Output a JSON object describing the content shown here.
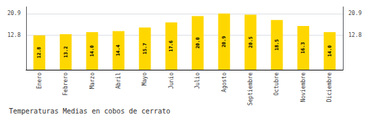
{
  "chart_data": {
    "type": "bar",
    "title": "Temperaturas Medias en cobos de cerrato",
    "categories": [
      "Enero",
      "Febrero",
      "Marzo",
      "Abril",
      "Mayo",
      "Junio",
      "Julio",
      "Agosto",
      "Septiembre",
      "Octubre",
      "Noviembre",
      "Diciembre"
    ],
    "values": [
      12.8,
      13.2,
      14.0,
      14.4,
      15.7,
      17.6,
      20.0,
      20.9,
      20.5,
      18.5,
      16.3,
      14.0
    ],
    "value_labels": [
      "12.8",
      "13.2",
      "14.0",
      "14.4",
      "15.7",
      "17.6",
      "20.0",
      "20.9",
      "20.5",
      "18.5",
      "16.3",
      "14.0"
    ],
    "data_labels": true,
    "color": "#FFD700",
    "ylim": [
      0,
      23.408
    ],
    "yticks": [
      12.8,
      20.9
    ],
    "y2lim": [
      0,
      23.408
    ],
    "y2ticks": [
      12.8,
      20.9
    ],
    "grid": true
  }
}
